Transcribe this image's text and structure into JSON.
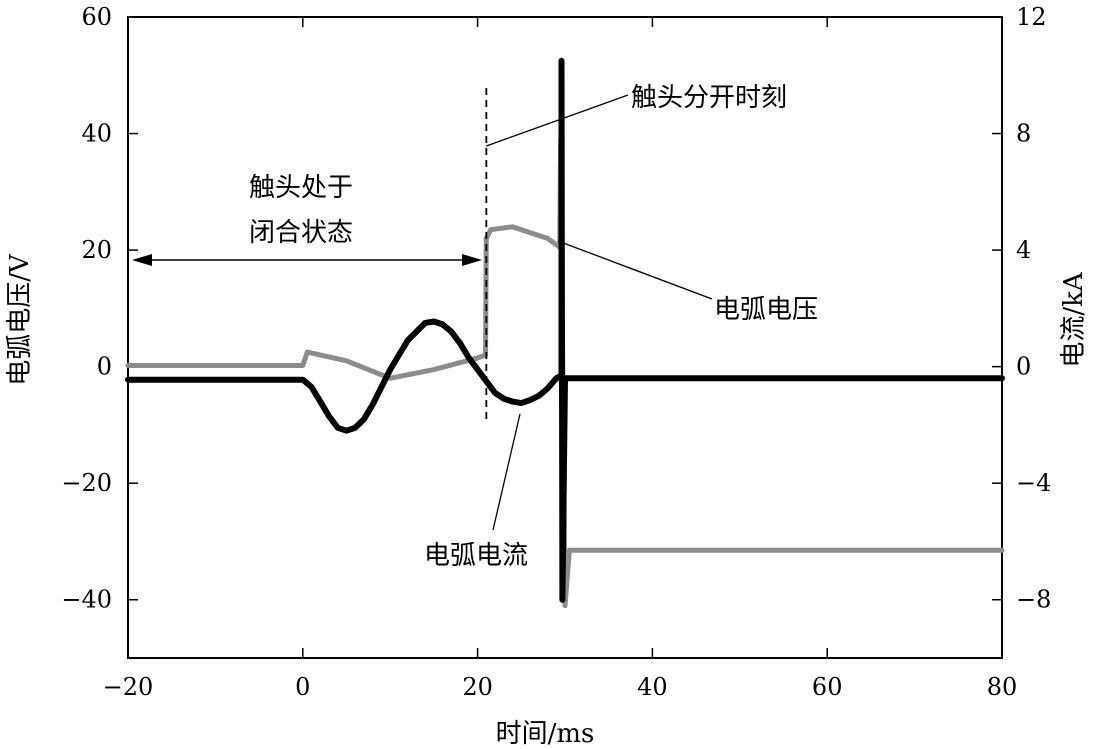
{
  "chart_data": {
    "type": "line",
    "xlabel": "时间/ms",
    "ylabel_left": "电弧电压/V",
    "ylabel_right": "电流/kA",
    "xlim": [
      -20,
      80
    ],
    "ylim_left": [
      -50,
      60
    ],
    "ylim_right": [
      -10,
      12
    ],
    "xticks": [
      "−20",
      "0",
      "20",
      "40",
      "60",
      "80"
    ],
    "yticks_left": [
      "60",
      "40",
      "20",
      "0",
      "−20",
      "−40"
    ],
    "yticks_right": [
      "12",
      "8",
      "4",
      "0",
      "−4",
      "−8"
    ],
    "grid": false,
    "series": [
      {
        "name": "电弧电压",
        "axis": "left",
        "color": "#8c8c8c",
        "x": [
          -20,
          0,
          0.5,
          5,
          10,
          15,
          20,
          20.9,
          21,
          21.5,
          24,
          26,
          28,
          29.4,
          29.5,
          30,
          30.5,
          40,
          60,
          80
        ],
        "y": [
          0.2,
          0.2,
          2.5,
          1.0,
          -2.0,
          -0.5,
          1.5,
          2.0,
          22.0,
          23.5,
          24.0,
          23.0,
          22.0,
          20.5,
          39.0,
          -41.0,
          -31.5,
          -31.5,
          -31.5,
          -31.5
        ]
      },
      {
        "name": "电弧电流",
        "axis": "right",
        "color": "#000000",
        "x": [
          -20,
          0,
          1,
          2,
          3,
          4,
          5,
          6,
          7,
          8,
          9,
          10,
          11,
          12,
          13,
          14,
          15,
          16,
          17,
          18,
          19,
          20,
          21,
          22,
          23,
          24,
          25,
          26,
          27,
          28,
          29,
          29.6,
          29.6,
          29.7,
          30,
          40,
          60,
          80
        ],
        "y": [
          -0.45,
          -0.45,
          -0.7,
          -1.2,
          -1.7,
          -2.1,
          -2.2,
          -2.1,
          -1.8,
          -1.3,
          -0.7,
          -0.1,
          0.4,
          0.9,
          1.2,
          1.5,
          1.55,
          1.45,
          1.2,
          0.8,
          0.3,
          -0.1,
          -0.5,
          -0.9,
          -1.1,
          -1.2,
          -1.25,
          -1.15,
          -1.0,
          -0.75,
          -0.4,
          -0.3,
          10.5,
          -8.0,
          -0.4,
          -0.4,
          -0.4,
          -0.4
        ]
      }
    ],
    "annotations": {
      "closed_line1": "触头处于",
      "closed_line2": "闭合状态",
      "separation": "触头分开时刻",
      "voltage_label": "电弧电压",
      "current_label": "电弧电流",
      "separation_time": 21
    }
  }
}
